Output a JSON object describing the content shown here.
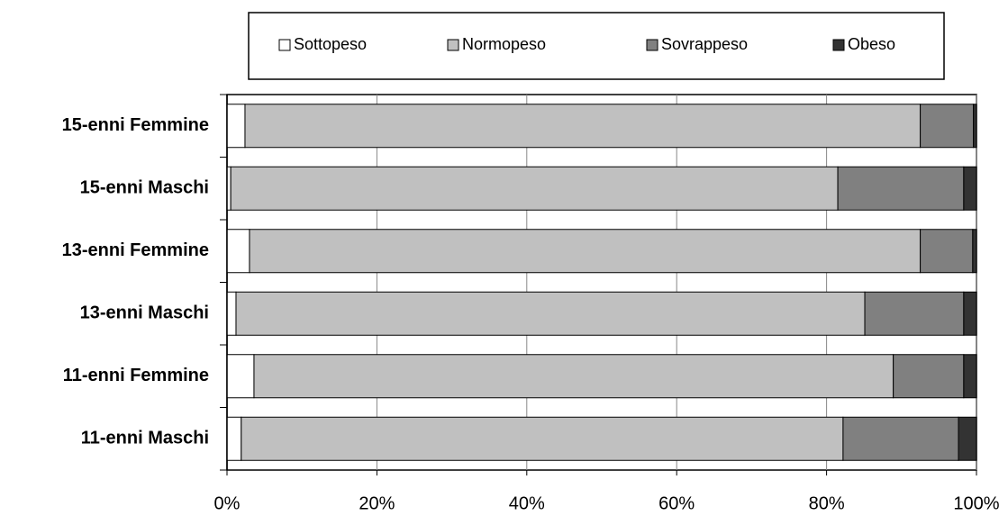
{
  "chart_data": {
    "type": "stacked_barh",
    "categories": [
      "15-enni Femmine",
      "15-enni Maschi",
      "13-enni Femmine",
      "13-enni Maschi",
      "11-enni Femmine",
      "11-enni Maschi"
    ],
    "series": [
      {
        "name": "Sottopeso",
        "color": "#ffffff",
        "values": [
          2.4,
          0.5,
          3.0,
          1.2,
          3.6,
          1.9
        ]
      },
      {
        "name": "Normopeso",
        "color": "#c0c0c0",
        "values": [
          90.1,
          81.0,
          89.5,
          83.9,
          85.3,
          80.3
        ]
      },
      {
        "name": "Sovrappeso",
        "color": "#808080",
        "values": [
          7.1,
          16.8,
          7.0,
          13.2,
          9.4,
          15.4
        ]
      },
      {
        "name": "Obeso",
        "color": "#333333",
        "values": [
          0.4,
          1.7,
          0.5,
          1.7,
          1.7,
          2.4
        ]
      }
    ],
    "xlim": [
      0,
      100
    ],
    "xticks": [
      {
        "value": 0,
        "label": "0%"
      },
      {
        "value": 20,
        "label": "20%"
      },
      {
        "value": 40,
        "label": "40%"
      },
      {
        "value": 60,
        "label": "60%"
      },
      {
        "value": 80,
        "label": "80%"
      },
      {
        "value": 100,
        "label": "100%"
      }
    ],
    "grid": true,
    "legend": "top"
  }
}
